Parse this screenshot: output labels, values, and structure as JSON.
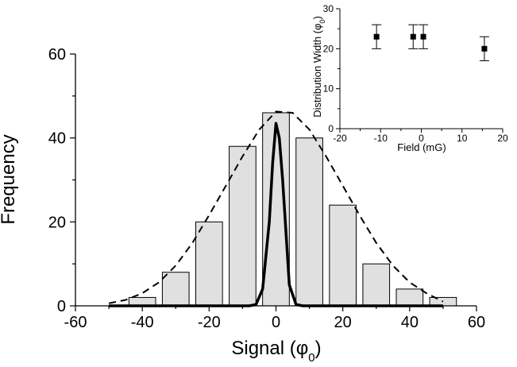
{
  "chart_data": [
    {
      "type": "bar",
      "xlabel": "Signal (φ0)",
      "xlabel_base": "Signal (φ",
      "xlabel_sub": "0",
      "xlabel_close": ")",
      "ylabel": "Frequency",
      "xlim": [
        -60,
        60
      ],
      "ylim": [
        0,
        60
      ],
      "xticks": [
        -60,
        -40,
        -20,
        0,
        20,
        40,
        60
      ],
      "yticks": [
        0,
        20,
        40,
        60
      ],
      "bar_width": 8,
      "bar_fill": "#e0e0e0",
      "bars": [
        {
          "x": -40,
          "y": 2
        },
        {
          "x": -30,
          "y": 8
        },
        {
          "x": -20,
          "y": 20
        },
        {
          "x": -10,
          "y": 38
        },
        {
          "x": 0,
          "y": 46
        },
        {
          "x": 10,
          "y": 40
        },
        {
          "x": 20,
          "y": 24
        },
        {
          "x": 30,
          "y": 10
        },
        {
          "x": 40,
          "y": 4
        },
        {
          "x": 50,
          "y": 2
        }
      ],
      "series": [
        {
          "style": "dashed",
          "points": [
            [
              -50,
              0.6
            ],
            [
              -45,
              1.4
            ],
            [
              -40,
              3.0
            ],
            [
              -35,
              5.6
            ],
            [
              -30,
              9.6
            ],
            [
              -25,
              15.0
            ],
            [
              -20,
              21.6
            ],
            [
              -15,
              28.6
            ],
            [
              -10,
              35.6
            ],
            [
              -5,
              42.0
            ],
            [
              0,
              46.3
            ],
            [
              5,
              46.0
            ],
            [
              10,
              42.0
            ],
            [
              15,
              35.6
            ],
            [
              20,
              28.6
            ],
            [
              25,
              21.6
            ],
            [
              30,
              15.0
            ],
            [
              35,
              9.6
            ],
            [
              40,
              5.6
            ],
            [
              45,
              3.0
            ],
            [
              50,
              1.0
            ]
          ]
        },
        {
          "style": "solid",
          "points": [
            [
              -50,
              0
            ],
            [
              -8,
              0
            ],
            [
              -6,
              0.3
            ],
            [
              -4,
              4
            ],
            [
              -2,
              20
            ],
            [
              -1,
              34
            ],
            [
              0,
              43.5
            ],
            [
              1,
              40
            ],
            [
              2,
              30
            ],
            [
              4,
              5
            ],
            [
              6,
              0.3
            ],
            [
              8,
              0
            ],
            [
              50,
              0
            ]
          ]
        }
      ]
    },
    {
      "type": "scatter",
      "xlabel": "Field (mG)",
      "ylabel": "Distribution Width (φ0)",
      "ylabel_base": "Distribution Width (φ",
      "ylabel_sub": "0",
      "ylabel_close": ")",
      "xlim": [
        -20,
        20
      ],
      "ylim": [
        0,
        30
      ],
      "xticks": [
        -20,
        -10,
        0,
        10,
        20
      ],
      "yticks": [
        0,
        10,
        20,
        30
      ],
      "points": [
        {
          "x": -11,
          "y": 23,
          "err": 3
        },
        {
          "x": -2,
          "y": 23,
          "err": 3
        },
        {
          "x": 0.5,
          "y": 23,
          "err": 3
        },
        {
          "x": 15.5,
          "y": 20,
          "err": 3
        }
      ]
    }
  ]
}
